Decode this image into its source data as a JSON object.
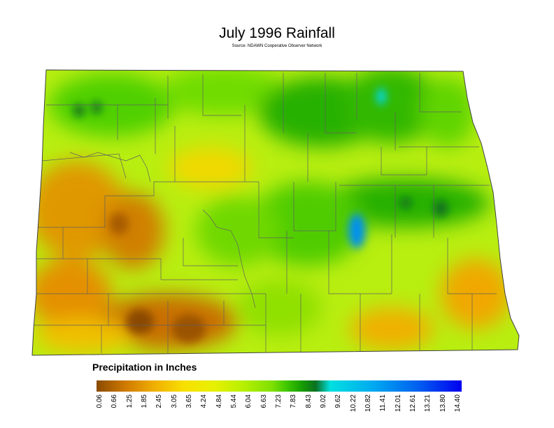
{
  "title": "July 1996 Rainfall",
  "source": "Source: NDAWN Cooperative Observer Network",
  "legend": {
    "title": "Precipitation in Inches",
    "ticks": [
      "0.06",
      "0.66",
      "1.25",
      "1.85",
      "2.45",
      "3.05",
      "3.65",
      "4.24",
      "4.84",
      "5.44",
      "6.04",
      "6.63",
      "7.23",
      "7.83",
      "8.43",
      "9.02",
      "9.62",
      "10.22",
      "10.82",
      "11.41",
      "12.01",
      "12.61",
      "13.21",
      "13.80",
      "14.40"
    ],
    "colors": [
      "#8a4a00",
      "#d07a00",
      "#f0b000",
      "#f8e000",
      "#e8f000",
      "#b8f000",
      "#80e000",
      "#40c800",
      "#18a000",
      "#0a7020",
      "#00e0e0",
      "#00a8f0",
      "#0060f0",
      "#0000f0"
    ]
  }
}
